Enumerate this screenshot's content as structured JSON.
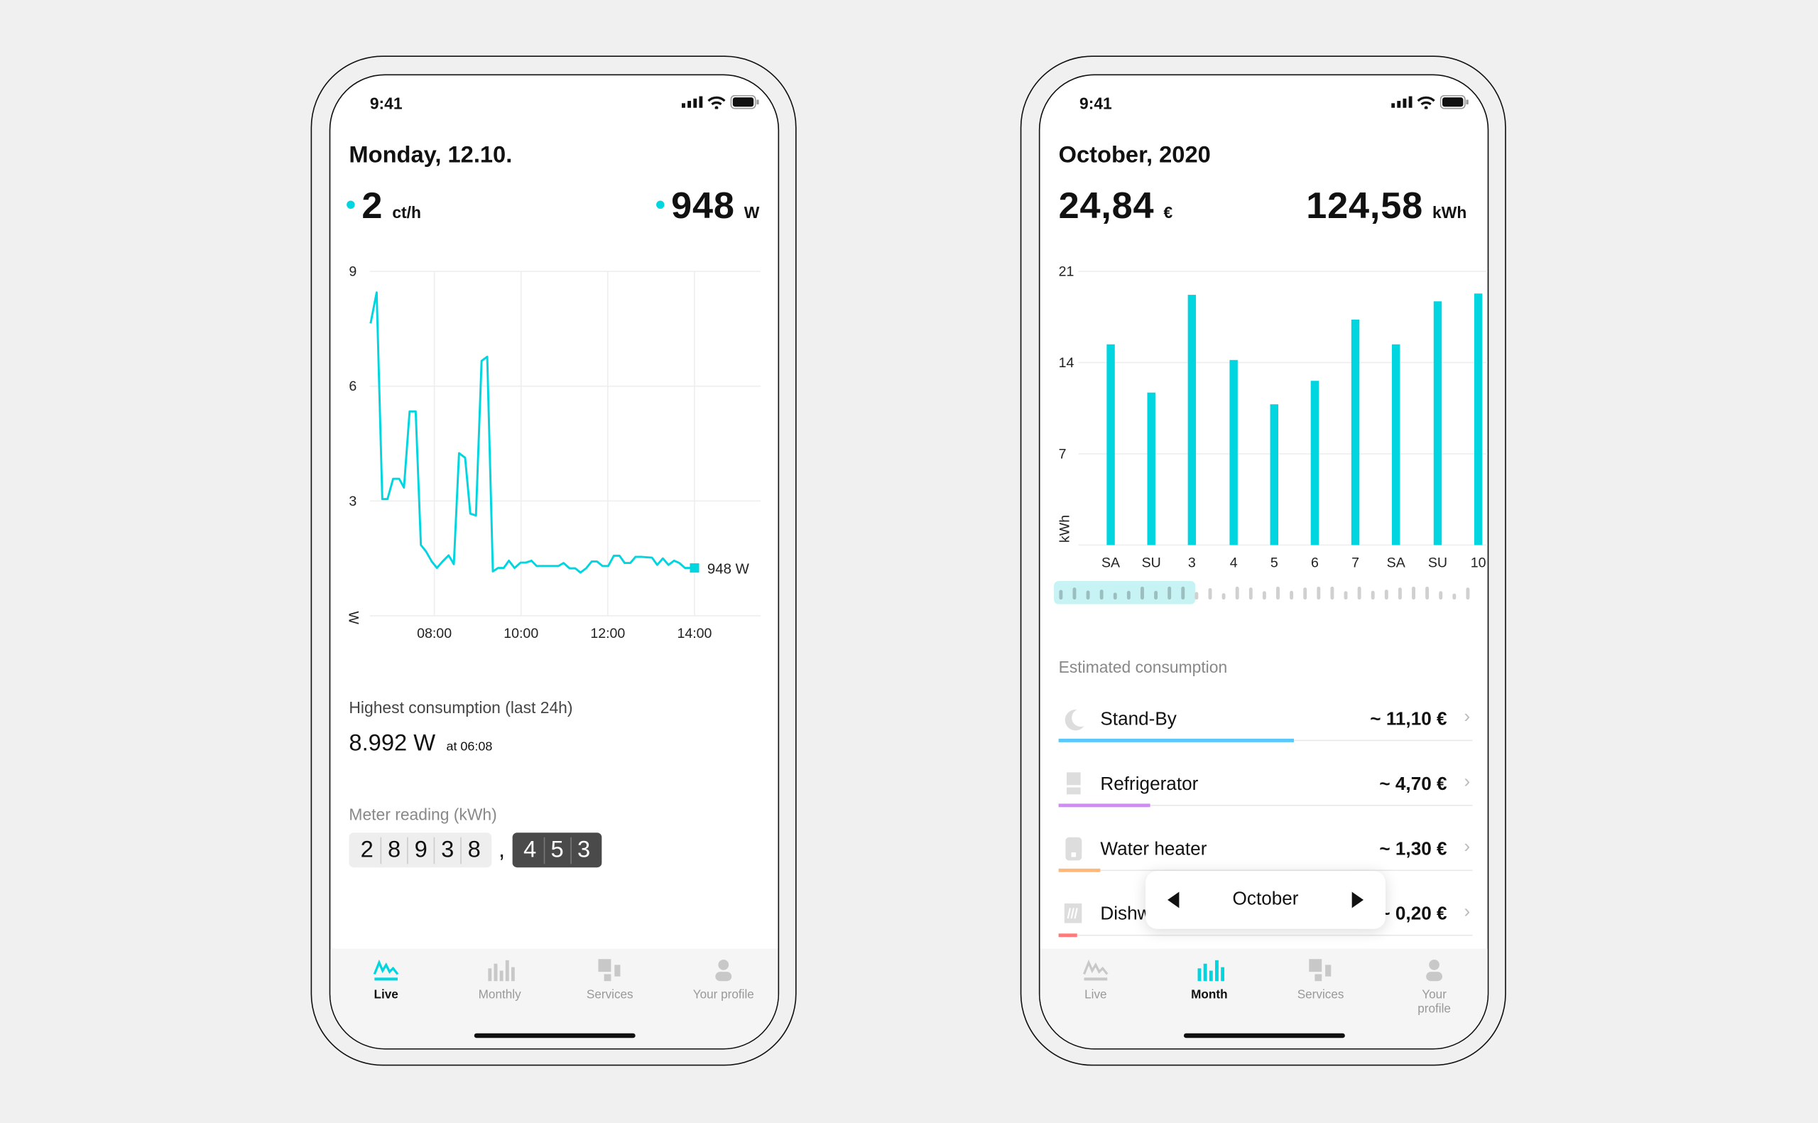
{
  "colors": {
    "accent": "#00d5e0",
    "standby": "#5ac8fa",
    "refrigerator": "#d08cf5",
    "water_heater": "#ffb878",
    "dishwasher": "#ff7b7b"
  },
  "status_bar": {
    "time": "9:41"
  },
  "live": {
    "title": "Monday, 12.10.",
    "price_value": "2",
    "price_unit": "ct/h",
    "power_value": "948",
    "power_unit": "W",
    "highest_label": "Highest consumption (last 24h)",
    "highest_value": "8.992 W",
    "highest_time": "at 06:08",
    "meter_label": "Meter reading (kWh)",
    "meter_integer": [
      "2",
      "8",
      "9",
      "3",
      "8"
    ],
    "meter_sep": ",",
    "meter_decimal": [
      "4",
      "5",
      "3"
    ],
    "tabs": [
      {
        "label": "Live",
        "icon": "live-icon"
      },
      {
        "label": "Monthly",
        "icon": "bar-chart-icon"
      },
      {
        "label": "Services",
        "icon": "services-icon"
      },
      {
        "label": "Your profile",
        "icon": "profile-icon"
      }
    ],
    "active_tab": 0
  },
  "month": {
    "title": "October, 2020",
    "cost_value": "24,84",
    "cost_unit": "€",
    "energy_value": "124,58",
    "energy_unit": "kWh",
    "section_label": "Estimated consumption",
    "items": [
      {
        "label": "Stand-By",
        "value": "~ 11,10 €",
        "share": 0.57,
        "icon": "moon-icon",
        "color": "#5ac8fa"
      },
      {
        "label": "Refrigerator",
        "value": "~ 4,70 €",
        "share": 0.22,
        "icon": "refrigerator-icon",
        "color": "#d08cf5"
      },
      {
        "label": "Water heater",
        "value": "~ 1,30 €",
        "share": 0.1,
        "icon": "water-heater-icon",
        "color": "#ffb878"
      },
      {
        "label": "Dishwasher",
        "value": "~ 0,20 €",
        "share": 0.045,
        "icon": "dishwasher-icon",
        "color": "#ff7b7b"
      }
    ],
    "picker": {
      "month": "October"
    },
    "tabs": [
      {
        "label": "Live",
        "icon": "live-icon"
      },
      {
        "label": "Month",
        "icon": "bar-chart-icon"
      },
      {
        "label": "Services",
        "icon": "services-icon"
      },
      {
        "label": "Your profile",
        "icon": "profile-icon"
      }
    ],
    "active_tab": 1
  },
  "chart_data": [
    {
      "type": "line",
      "title": "",
      "xlabel": "",
      "ylabel": "W",
      "xlim": [
        6.5,
        15.5
      ],
      "ylim": [
        0,
        9
      ],
      "yticks": [
        "3",
        "6",
        "9"
      ],
      "xticks": [
        {
          "x": 8,
          "label": "08:00"
        },
        {
          "x": 10,
          "label": "10:00"
        },
        {
          "x": 12,
          "label": "12:00"
        },
        {
          "x": 14,
          "label": "14:00"
        }
      ],
      "grid": true,
      "end_label": "948 W",
      "points": [
        [
          6.53,
          7.64
        ],
        [
          6.67,
          8.45
        ],
        [
          6.8,
          3.05
        ],
        [
          6.92,
          3.05
        ],
        [
          7.05,
          3.58
        ],
        [
          7.19,
          3.58
        ],
        [
          7.3,
          3.35
        ],
        [
          7.43,
          5.34
        ],
        [
          7.57,
          5.34
        ],
        [
          7.69,
          1.85
        ],
        [
          7.81,
          1.68
        ],
        [
          7.94,
          1.42
        ],
        [
          8.06,
          1.25
        ],
        [
          8.19,
          1.42
        ],
        [
          8.33,
          1.58
        ],
        [
          8.45,
          1.35
        ],
        [
          8.57,
          4.25
        ],
        [
          8.71,
          4.13
        ],
        [
          8.83,
          2.67
        ],
        [
          8.96,
          2.62
        ],
        [
          9.09,
          6.66
        ],
        [
          9.22,
          6.77
        ],
        [
          9.35,
          1.16
        ],
        [
          9.47,
          1.25
        ],
        [
          9.6,
          1.25
        ],
        [
          9.72,
          1.44
        ],
        [
          9.85,
          1.25
        ],
        [
          9.99,
          1.39
        ],
        [
          10.11,
          1.39
        ],
        [
          10.24,
          1.44
        ],
        [
          10.36,
          1.3
        ],
        [
          10.61,
          1.3
        ],
        [
          10.86,
          1.3
        ],
        [
          10.98,
          1.38
        ],
        [
          11.12,
          1.24
        ],
        [
          11.25,
          1.24
        ],
        [
          11.37,
          1.13
        ],
        [
          11.5,
          1.24
        ],
        [
          11.63,
          1.42
        ],
        [
          11.75,
          1.42
        ],
        [
          11.88,
          1.3
        ],
        [
          12.01,
          1.3
        ],
        [
          12.14,
          1.57
        ],
        [
          12.27,
          1.57
        ],
        [
          12.39,
          1.38
        ],
        [
          12.52,
          1.38
        ],
        [
          12.64,
          1.54
        ],
        [
          12.77,
          1.54
        ],
        [
          13.02,
          1.52
        ],
        [
          13.14,
          1.33
        ],
        [
          13.27,
          1.5
        ],
        [
          13.4,
          1.33
        ],
        [
          13.53,
          1.44
        ],
        [
          13.65,
          1.38
        ],
        [
          13.78,
          1.25
        ],
        [
          14.0,
          1.25
        ]
      ]
    },
    {
      "type": "bar",
      "title": "",
      "xlabel": "",
      "ylabel": "kWh",
      "ylim": [
        0,
        21
      ],
      "yticks": [
        "7",
        "14",
        "21"
      ],
      "grid": true,
      "categories": [
        "SA",
        "SU",
        "3",
        "4",
        "5",
        "6",
        "7",
        "SA",
        "SU",
        "10"
      ],
      "values": [
        15.4,
        11.7,
        19.2,
        14.2,
        10.8,
        12.6,
        17.3,
        15.4,
        18.7,
        19.3
      ],
      "overview_days": [
        3.2,
        4.0,
        3.0,
        3.3,
        2.3,
        2.9,
        4.3,
        2.9,
        4.3,
        4.3,
        2.5,
        3.8,
        2.1,
        4.3,
        4.0,
        2.8,
        4.3,
        2.9,
        4.0,
        4.3,
        4.3,
        2.8,
        4.3,
        2.9,
        3.3,
        4.0,
        4.3,
        4.3,
        2.8,
        2.0,
        4.0
      ],
      "overview_selected": [
        1,
        10
      ]
    }
  ]
}
